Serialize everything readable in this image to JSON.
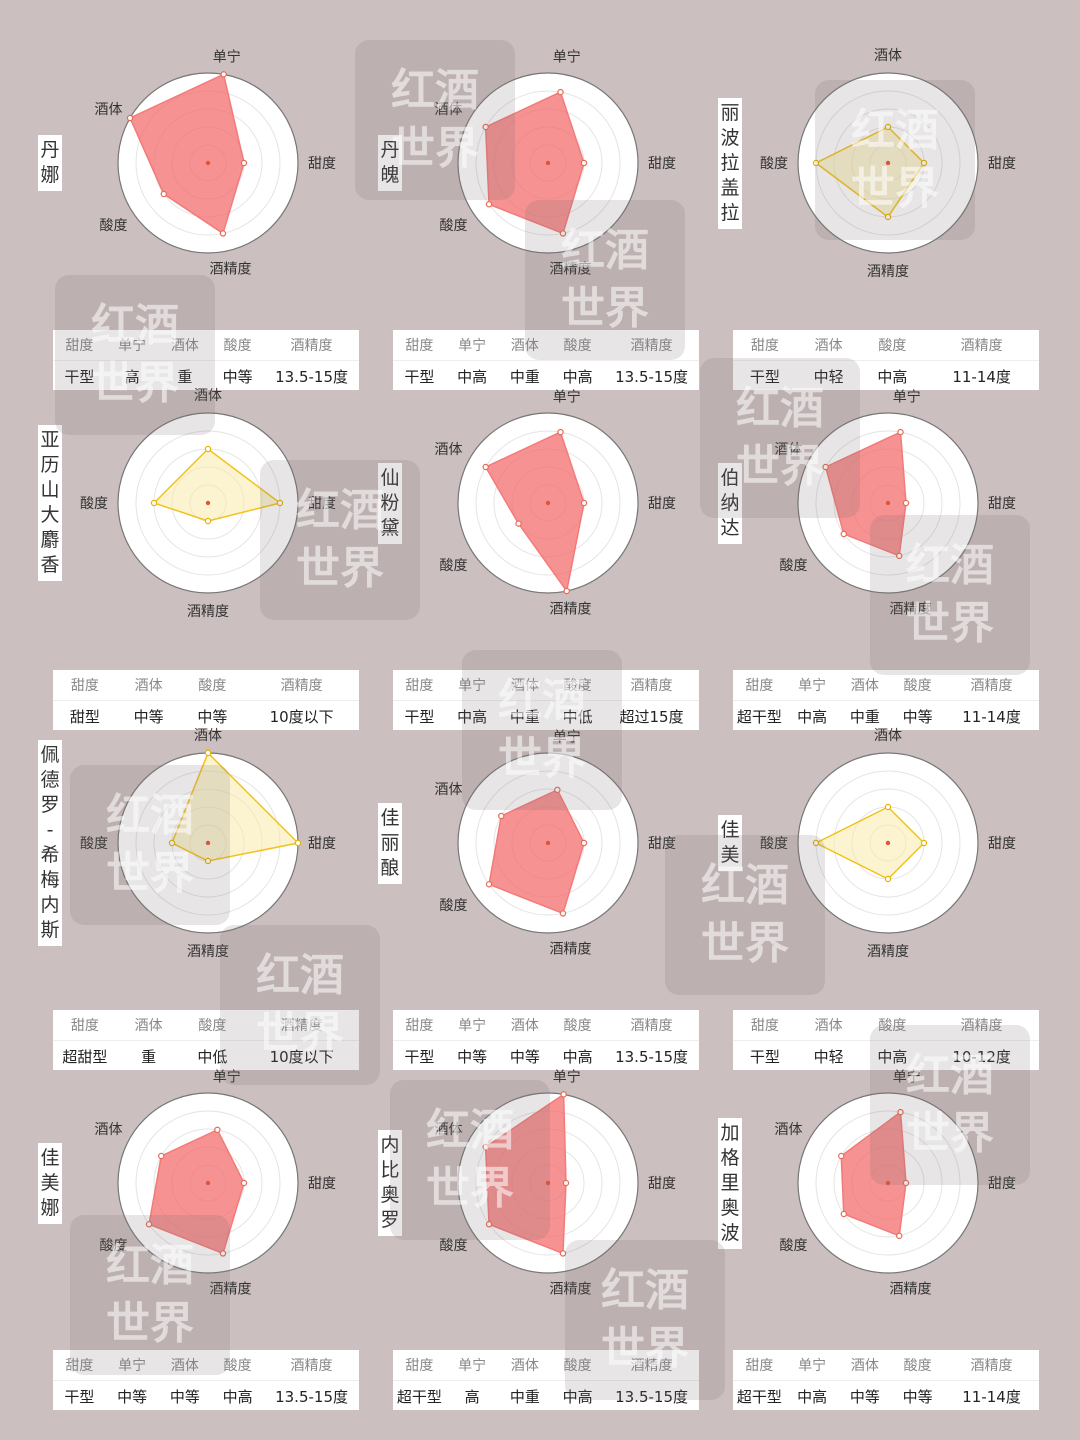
{
  "chart_data": [
    {
      "type": "radar",
      "name": "丹娜",
      "axes": [
        "单宁",
        "甜度",
        "酒精度",
        "酸度",
        "酒体"
      ],
      "values": [
        5,
        2,
        4,
        3,
        5
      ],
      "color": "#f48080",
      "table": {
        "headers": [
          "甜度",
          "单宁",
          "酒体",
          "酸度",
          "酒精度"
        ],
        "values": [
          "干型",
          "高",
          "重",
          "中等",
          "13.5-15度"
        ]
      }
    },
    {
      "type": "radar",
      "name": "丹魄",
      "axes": [
        "单宁",
        "甜度",
        "酒精度",
        "酸度",
        "酒体"
      ],
      "values": [
        4,
        2,
        4,
        4,
        4
      ],
      "color": "#f48080",
      "table": {
        "headers": [
          "甜度",
          "单宁",
          "酒体",
          "酸度",
          "酒精度"
        ],
        "values": [
          "干型",
          "中高",
          "中重",
          "中高",
          "13.5-15度"
        ]
      }
    },
    {
      "type": "radar",
      "name": "丽波拉盖拉",
      "axes": [
        "酒体",
        "甜度",
        "酒精度",
        "酸度"
      ],
      "values": [
        2,
        2,
        3,
        4
      ],
      "color": "#f0c419",
      "table": {
        "headers": [
          "甜度",
          "酒体",
          "酸度",
          "酒精度"
        ],
        "values": [
          "干型",
          "中轻",
          "中高",
          "11-14度"
        ]
      }
    },
    {
      "type": "radar",
      "name": "亚历山大麝香",
      "axes": [
        "酒体",
        "甜度",
        "酒精度",
        "酸度"
      ],
      "values": [
        3,
        4,
        1,
        3
      ],
      "color": "#f0c419",
      "table": {
        "headers": [
          "甜度",
          "酒体",
          "酸度",
          "酒精度"
        ],
        "values": [
          "甜型",
          "中等",
          "中等",
          "10度以下"
        ]
      }
    },
    {
      "type": "radar",
      "name": "仙粉黛",
      "axes": [
        "单宁",
        "甜度",
        "酒精度",
        "酸度",
        "酒体"
      ],
      "values": [
        4,
        2,
        5,
        2,
        4
      ],
      "color": "#f48080",
      "table": {
        "headers": [
          "甜度",
          "单宁",
          "酒体",
          "酸度",
          "酒精度"
        ],
        "values": [
          "干型",
          "中高",
          "中重",
          "中低",
          "超过15度"
        ]
      }
    },
    {
      "type": "radar",
      "name": "伯纳达",
      "axes": [
        "单宁",
        "甜度",
        "酒精度",
        "酸度",
        "酒体"
      ],
      "values": [
        4,
        1,
        3,
        3,
        4
      ],
      "color": "#f48080",
      "table": {
        "headers": [
          "甜度",
          "单宁",
          "酒体",
          "酸度",
          "酒精度"
        ],
        "values": [
          "超干型",
          "中高",
          "中重",
          "中等",
          "11-14度"
        ]
      }
    },
    {
      "type": "radar",
      "name": "佩德罗-希梅内斯",
      "axes": [
        "酒体",
        "甜度",
        "酒精度",
        "酸度"
      ],
      "values": [
        5,
        5,
        1,
        2
      ],
      "color": "#f0c419",
      "table": {
        "headers": [
          "甜度",
          "酒体",
          "酸度",
          "酒精度"
        ],
        "values": [
          "超甜型",
          "重",
          "中低",
          "10度以下"
        ]
      }
    },
    {
      "type": "radar",
      "name": "佳丽酿",
      "axes": [
        "单宁",
        "甜度",
        "酒精度",
        "酸度",
        "酒体"
      ],
      "values": [
        3,
        2,
        4,
        4,
        3
      ],
      "color": "#f48080",
      "table": {
        "headers": [
          "甜度",
          "单宁",
          "酒体",
          "酸度",
          "酒精度"
        ],
        "values": [
          "干型",
          "中等",
          "中等",
          "中高",
          "13.5-15度"
        ]
      }
    },
    {
      "type": "radar",
      "name": "佳美",
      "axes": [
        "酒体",
        "甜度",
        "酒精度",
        "酸度"
      ],
      "values": [
        2,
        2,
        2,
        4
      ],
      "color": "#f0c419",
      "table": {
        "headers": [
          "甜度",
          "酒体",
          "酸度",
          "酒精度"
        ],
        "values": [
          "干型",
          "中轻",
          "中高",
          "10-12度"
        ]
      }
    },
    {
      "type": "radar",
      "name": "佳美娜",
      "axes": [
        "单宁",
        "甜度",
        "酒精度",
        "酸度",
        "酒体"
      ],
      "values": [
        3,
        2,
        4,
        4,
        3
      ],
      "color": "#f48080",
      "table": {
        "headers": [
          "甜度",
          "单宁",
          "酒体",
          "酸度",
          "酒精度"
        ],
        "values": [
          "干型",
          "中等",
          "中等",
          "中高",
          "13.5-15度"
        ]
      }
    },
    {
      "type": "radar",
      "name": "内比奥罗",
      "axes": [
        "单宁",
        "甜度",
        "酒精度",
        "酸度",
        "酒体"
      ],
      "values": [
        5,
        1,
        4,
        4,
        4
      ],
      "color": "#f48080",
      "table": {
        "headers": [
          "甜度",
          "单宁",
          "酒体",
          "酸度",
          "酒精度"
        ],
        "values": [
          "超干型",
          "高",
          "中重",
          "中高",
          "13.5-15度"
        ]
      }
    },
    {
      "type": "radar",
      "name": "加格里奥波",
      "axes": [
        "单宁",
        "甜度",
        "酒精度",
        "酸度",
        "酒体"
      ],
      "values": [
        4,
        1,
        3,
        3,
        3
      ],
      "color": "#f48080",
      "table": {
        "headers": [
          "甜度",
          "单宁",
          "酒体",
          "酸度",
          "酒精度"
        ],
        "values": [
          "超干型",
          "中高",
          "中等",
          "中等",
          "11-14度"
        ]
      }
    }
  ],
  "watermark": "红酒世界"
}
